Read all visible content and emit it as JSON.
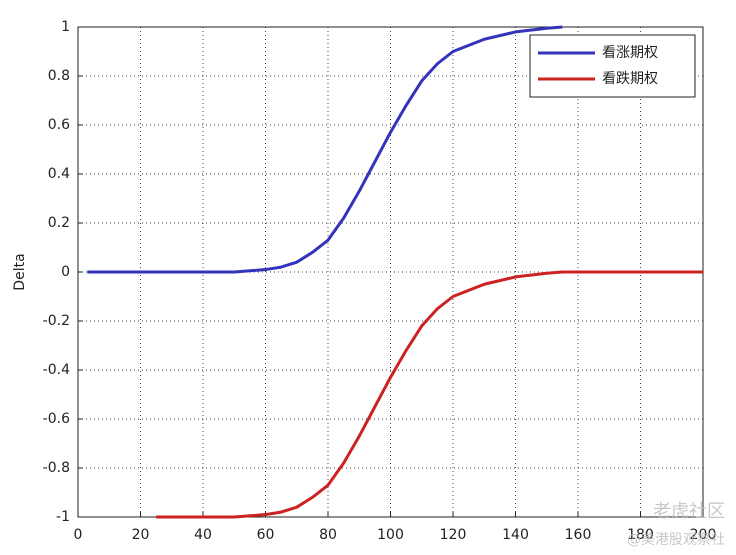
{
  "chart_data": {
    "type": "line",
    "y_label": "Delta",
    "x": [
      3,
      25,
      40,
      50,
      60,
      65,
      70,
      75,
      80,
      85,
      90,
      95,
      100,
      105,
      110,
      115,
      120,
      130,
      140,
      150,
      155,
      160,
      180,
      200
    ],
    "series": [
      {
        "name": "看涨期权",
        "color": "#3333bb",
        "values": [
          0,
          0,
          0,
          0,
          0.01,
          0.02,
          0.04,
          0.08,
          0.13,
          0.22,
          0.33,
          0.45,
          0.57,
          0.68,
          0.78,
          0.85,
          0.9,
          0.95,
          0.98,
          0.995,
          1,
          null,
          null,
          null
        ]
      },
      {
        "name": "看跌期权",
        "color": "#cc2222",
        "values": [
          null,
          -1,
          -1,
          -1,
          -0.99,
          -0.98,
          -0.96,
          -0.92,
          -0.87,
          -0.78,
          -0.67,
          -0.55,
          -0.43,
          -0.32,
          -0.22,
          -0.15,
          -0.1,
          -0.05,
          -0.02,
          -0.005,
          0,
          0,
          0,
          0
        ]
      }
    ],
    "xlim": [
      0,
      200
    ],
    "xticks": [
      0,
      20,
      40,
      60,
      80,
      100,
      120,
      140,
      160,
      180,
      200
    ],
    "ylim": [
      -1,
      1
    ],
    "yticks": [
      -1,
      -0.8,
      -0.6,
      -0.4,
      -0.2,
      0,
      0.2,
      0.4,
      0.6,
      0.8,
      1
    ],
    "grid": true,
    "legend": "upper right",
    "watermark": [
      "老虎社区",
      "@美港股观察社"
    ]
  }
}
